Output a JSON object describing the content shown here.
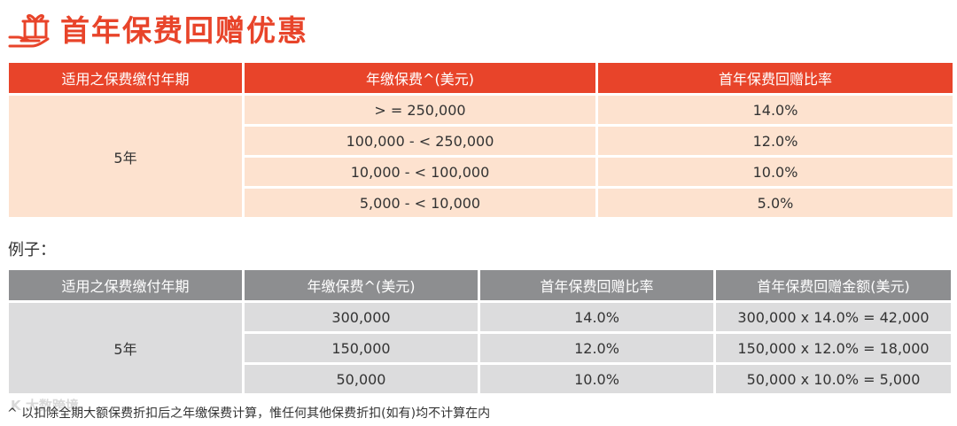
{
  "header": {
    "title": "首年保费回赠优惠",
    "icon": "gift-hand-icon",
    "accent": "#e8442a"
  },
  "table1": {
    "headers": [
      "适用之保费缴付年期",
      "年缴保费^(美元)",
      "首年保费回赠比率"
    ],
    "period": "5年",
    "rows": [
      [
        "> = 250,000",
        "14.0%"
      ],
      [
        "100,000 - < 250,000",
        "12.0%"
      ],
      [
        "10,000 - < 100,000",
        "10.0%"
      ],
      [
        "5,000 - < 10,000",
        "5.0%"
      ]
    ]
  },
  "example_label": "例子：",
  "table2": {
    "headers": [
      "适用之保费缴付年期",
      "年缴保费^(美元)",
      "首年保费回赠比率",
      "首年保费回赠金额(美元)"
    ],
    "period": "5年",
    "rows": [
      [
        "300,000",
        "14.0%",
        "300,000 x 14.0% = 42,000"
      ],
      [
        "150,000",
        "12.0%",
        "150,000 x 12.0% = 18,000"
      ],
      [
        "50,000",
        "10.0%",
        "50,000 x 10.0% = 5,000"
      ]
    ]
  },
  "footnote": "^ 以扣除全期大额保费折扣后之年缴保费计算，惟任何其他保费折扣(如有)均不计算在内",
  "watermark": "K 大数跨境"
}
